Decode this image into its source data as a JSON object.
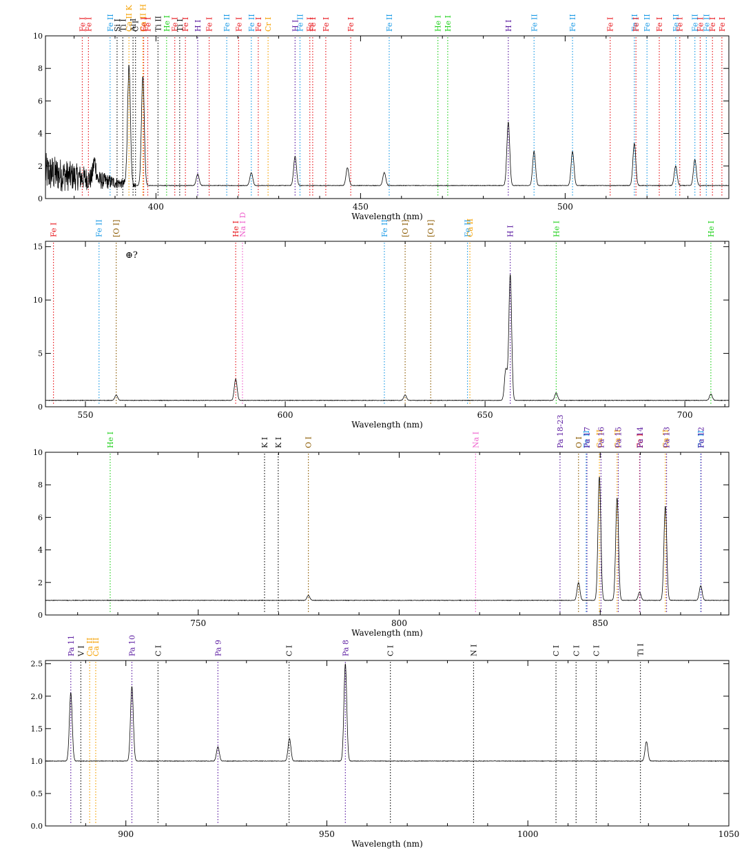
{
  "figure": {
    "xlabel": "Wavelength (nm)",
    "colors": {
      "Fe I": "#e8151b",
      "Fe II": "#1a9ae6",
      "He I": "#22d11e",
      "H I": "#5a1aa0",
      "Pa": "#5a1aa0",
      "Ca II": "#f5a000",
      "Na I": "#ee5fcc",
      "O I": "#8b5a00",
      "[O I]": "#8b5a00",
      "neutral": "#111111",
      "spectrum": "#000000",
      "model": "#999999"
    }
  },
  "chart_data": [
    {
      "type": "line",
      "panel": 1,
      "xlim": [
        373,
        540
      ],
      "ylim": [
        0,
        10
      ],
      "xticks": [
        400,
        450,
        500
      ],
      "yticks": [
        0,
        2,
        4,
        6,
        8,
        10
      ],
      "xlabel": "Wavelength (nm)",
      "continuum": 0.8,
      "emission_peaks": [
        {
          "x": 393.4,
          "y": 8.0
        },
        {
          "x": 396.8,
          "y": 7.5
        },
        {
          "x": 486.1,
          "y": 4.7
        },
        {
          "x": 434.0,
          "y": 2.6
        },
        {
          "x": 492.4,
          "y": 2.9
        },
        {
          "x": 501.8,
          "y": 2.9
        },
        {
          "x": 516.9,
          "y": 3.4
        },
        {
          "x": 527.0,
          "y": 2.0
        },
        {
          "x": 531.7,
          "y": 2.4
        },
        {
          "x": 446.8,
          "y": 1.9
        },
        {
          "x": 423.3,
          "y": 1.6
        },
        {
          "x": 410.2,
          "y": 1.5
        },
        {
          "x": 455.8,
          "y": 1.6
        },
        {
          "x": 385.0,
          "y": 1.9
        }
      ],
      "noisy_region": [
        373,
        395
      ],
      "lines": [
        {
          "label": "Fe I",
          "color": "Fe I",
          "x": 382.0
        },
        {
          "label": "Si I",
          "color": "neutral",
          "x": 390.5
        },
        {
          "label": "Ti I",
          "color": "neutral",
          "x": 391.9
        },
        {
          "label": "Fe I",
          "color": "Fe I",
          "x": 383.5
        },
        {
          "label": "Ca II H",
          "color": "Ca II",
          "x": 396.8
        },
        {
          "label": "Fe II",
          "color": "Fe II",
          "x": 388.8
        },
        {
          "label": "Al I",
          "color": "neutral",
          "x": 394.4
        },
        {
          "label": "C I",
          "color": "neutral",
          "x": 395.0
        },
        {
          "label": "Fe I",
          "color": "Fe I",
          "x": 397.0
        },
        {
          "label": "Ca II K",
          "color": "Ca II",
          "x": 393.4
        },
        {
          "label": "Fe I",
          "color": "Fe I",
          "x": 398.0
        },
        {
          "label": "Ti II",
          "color": "neutral",
          "x": 400.5
        },
        {
          "label": "He I",
          "color": "He I",
          "x": 402.6
        },
        {
          "label": "Fe I",
          "color": "Fe I",
          "x": 404.6
        },
        {
          "label": "Ti I",
          "color": "neutral",
          "x": 405.8
        },
        {
          "label": "Fe I",
          "color": "Fe I",
          "x": 407.2
        },
        {
          "label": "H I",
          "color": "H I",
          "x": 410.2
        },
        {
          "label": "Fe I",
          "color": "Fe I",
          "x": 413.0
        },
        {
          "label": "Fe II",
          "color": "Fe II",
          "x": 417.3
        },
        {
          "label": "Fe I",
          "color": "Fe I",
          "x": 420.2
        },
        {
          "label": "Fe II",
          "color": "Fe II",
          "x": 423.3
        },
        {
          "label": "Fe I",
          "color": "Fe I",
          "x": 425.0
        },
        {
          "label": "Cr I",
          "color": "Ca II",
          "x": 427.4
        },
        {
          "label": "H I",
          "color": "H I",
          "x": 434.0
        },
        {
          "label": "Fe II",
          "color": "Fe II",
          "x": 435.2
        },
        {
          "label": "Fe I",
          "color": "Fe I",
          "x": 437.6
        },
        {
          "label": "Fe I",
          "color": "Fe I",
          "x": 438.3
        },
        {
          "label": "Fe I",
          "color": "Fe I",
          "x": 441.5
        },
        {
          "label": "Fe I",
          "color": "Fe I",
          "x": 447.6
        },
        {
          "label": "Fe II",
          "color": "Fe II",
          "x": 457.0
        },
        {
          "label": "He I",
          "color": "He I",
          "x": 468.9
        },
        {
          "label": "He I",
          "color": "He I",
          "x": 471.3
        },
        {
          "label": "H I",
          "color": "H I",
          "x": 486.1
        },
        {
          "label": "Fe II",
          "color": "Fe II",
          "x": 492.4
        },
        {
          "label": "Fe II",
          "color": "Fe II",
          "x": 501.8
        },
        {
          "label": "Fe I",
          "color": "Fe I",
          "x": 511.0
        },
        {
          "label": "Fe II",
          "color": "Fe II",
          "x": 516.9
        },
        {
          "label": "Fe I",
          "color": "Fe I",
          "x": 517.3
        },
        {
          "label": "Fe II",
          "color": "Fe II",
          "x": 520.0
        },
        {
          "label": "Fe I",
          "color": "Fe I",
          "x": 523.0
        },
        {
          "label": "Fe II",
          "color": "Fe II",
          "x": 527.0
        },
        {
          "label": "Fe I",
          "color": "Fe I",
          "x": 528.0
        },
        {
          "label": "Fe II",
          "color": "Fe II",
          "x": 531.7
        },
        {
          "label": "Fe I",
          "color": "Fe I",
          "x": 533.0
        },
        {
          "label": "Fe II",
          "color": "Fe II",
          "x": 534.5
        },
        {
          "label": "Fe I",
          "color": "Fe I",
          "x": 536.0
        },
        {
          "label": "Fe I",
          "color": "Fe I",
          "x": 538.3
        }
      ]
    },
    {
      "type": "line",
      "panel": 2,
      "xlim": [
        540,
        711
      ],
      "ylim": [
        0,
        15.5
      ],
      "xticks": [
        550,
        600,
        650,
        700
      ],
      "yticks": [
        0,
        5,
        10,
        15
      ],
      "xlabel": "Wavelength (nm)",
      "continuum": 0.6,
      "emission_peaks": [
        {
          "x": 656.3,
          "y": 12.4
        },
        {
          "x": 655.2,
          "y": 3.5
        },
        {
          "x": 587.6,
          "y": 2.6
        },
        {
          "x": 667.8,
          "y": 1.3
        },
        {
          "x": 706.5,
          "y": 1.2
        },
        {
          "x": 557.7,
          "y": 1.1
        },
        {
          "x": 630.0,
          "y": 1.1
        }
      ],
      "lines": [
        {
          "label": "Fe I",
          "color": "Fe I",
          "x": 542.0
        },
        {
          "label": "Fe II",
          "color": "Fe II",
          "x": 553.4
        },
        {
          "label": "[O I]",
          "color": "[O I]",
          "x": 557.7
        },
        {
          "label": "He I",
          "color": "Fe I",
          "x": 587.6
        },
        {
          "label": "Na I D",
          "color": "Na I",
          "x": 589.3
        },
        {
          "label": "Fe II",
          "color": "Fe II",
          "x": 624.8
        },
        {
          "label": "[O I]",
          "color": "[O I]",
          "x": 630.0
        },
        {
          "label": "[O I]",
          "color": "[O I]",
          "x": 636.4
        },
        {
          "label": "Fe II",
          "color": "Fe II",
          "x": 645.6
        },
        {
          "label": "Ca II",
          "color": "Ca II",
          "x": 646.2
        },
        {
          "label": "H I",
          "color": "H I",
          "x": 656.3
        },
        {
          "label": "He I",
          "color": "He I",
          "x": 667.8
        },
        {
          "label": "He I",
          "color": "He I",
          "x": 706.5
        }
      ],
      "annotation": "⊕?"
    },
    {
      "type": "line",
      "panel": 3,
      "xlim": [
        712,
        882
      ],
      "ylim": [
        0,
        10
      ],
      "xticks": [
        750,
        800,
        850
      ],
      "yticks": [
        0,
        2,
        4,
        6,
        8,
        10
      ],
      "xlabel": "Wavelength (nm)",
      "continuum": 0.9,
      "emission_peaks": [
        {
          "x": 849.8,
          "y": 8.5
        },
        {
          "x": 854.2,
          "y": 7.2
        },
        {
          "x": 866.2,
          "y": 6.7
        },
        {
          "x": 844.6,
          "y": 2.0
        },
        {
          "x": 875.0,
          "y": 1.8
        },
        {
          "x": 859.8,
          "y": 1.4
        },
        {
          "x": 777.4,
          "y": 1.2
        }
      ],
      "lines": [
        {
          "label": "He I",
          "color": "He I",
          "x": 728.1
        },
        {
          "label": "K I",
          "color": "neutral",
          "x": 766.5
        },
        {
          "label": "K I",
          "color": "neutral",
          "x": 769.9
        },
        {
          "label": "O I",
          "color": "O I",
          "x": 777.4
        },
        {
          "label": "Na I",
          "color": "Na I",
          "x": 819.0
        },
        {
          "label": "Pa 18-23",
          "color": "Pa",
          "x": 840.0
        },
        {
          "label": "O I",
          "color": "O I",
          "x": 844.6
        },
        {
          "label": "Fe II",
          "color": "Fe II",
          "x": 846.5
        },
        {
          "label": "Pa 17",
          "color": "Pa",
          "x": 846.7
        },
        {
          "label": "Ca II",
          "color": "Ca II",
          "x": 849.8
        },
        {
          "label": "Pa 16",
          "color": "Pa",
          "x": 850.2
        },
        {
          "label": "Ca II",
          "color": "Ca II",
          "x": 854.2
        },
        {
          "label": "Pa 15",
          "color": "Pa",
          "x": 854.5
        },
        {
          "label": "Fe I",
          "color": "Fe I",
          "x": 859.8
        },
        {
          "label": "Pa 14",
          "color": "Pa",
          "x": 859.9
        },
        {
          "label": "Ca II",
          "color": "Ca II",
          "x": 866.2
        },
        {
          "label": "Pa 13",
          "color": "Pa",
          "x": 866.5
        },
        {
          "label": "Fe II",
          "color": "Fe II",
          "x": 875.0
        },
        {
          "label": "Pa 12",
          "color": "Pa",
          "x": 875.1
        }
      ]
    },
    {
      "type": "line",
      "panel": 4,
      "xlim": [
        880,
        1050
      ],
      "ylim": [
        0,
        2.55
      ],
      "xticks": [
        900,
        950,
        1000,
        1050
      ],
      "yticks": [
        0.0,
        0.5,
        1.0,
        1.5,
        2.0,
        2.5
      ],
      "xlabel": "Wavelength (nm)",
      "continuum": 1.0,
      "emission_peaks": [
        {
          "x": 886.3,
          "y": 2.05
        },
        {
          "x": 901.5,
          "y": 2.15
        },
        {
          "x": 954.6,
          "y": 2.5
        },
        {
          "x": 922.9,
          "y": 1.22
        },
        {
          "x": 940.7,
          "y": 1.35
        },
        {
          "x": 1029.5,
          "y": 1.3
        }
      ],
      "lines": [
        {
          "label": "Pa 11",
          "color": "Pa",
          "x": 886.3
        },
        {
          "label": "V I",
          "color": "neutral",
          "x": 888.8
        },
        {
          "label": "Ca II",
          "color": "Ca II",
          "x": 891.0
        },
        {
          "label": "Ca II",
          "color": "Ca II",
          "x": 892.5
        },
        {
          "label": "Pa 10",
          "color": "Pa",
          "x": 901.5
        },
        {
          "label": "C I",
          "color": "neutral",
          "x": 908.0
        },
        {
          "label": "Pa 9",
          "color": "Pa",
          "x": 922.9
        },
        {
          "label": "C I",
          "color": "neutral",
          "x": 940.6
        },
        {
          "label": "Pa 8",
          "color": "Pa",
          "x": 954.6
        },
        {
          "label": "C I",
          "color": "neutral",
          "x": 965.8
        },
        {
          "label": "N I",
          "color": "neutral",
          "x": 986.5
        },
        {
          "label": "C I",
          "color": "neutral",
          "x": 1007.0
        },
        {
          "label": "C I",
          "color": "neutral",
          "x": 1012.0
        },
        {
          "label": "C I",
          "color": "neutral",
          "x": 1017.0
        },
        {
          "label": "Ti I",
          "color": "neutral",
          "x": 1028.0
        }
      ]
    }
  ]
}
